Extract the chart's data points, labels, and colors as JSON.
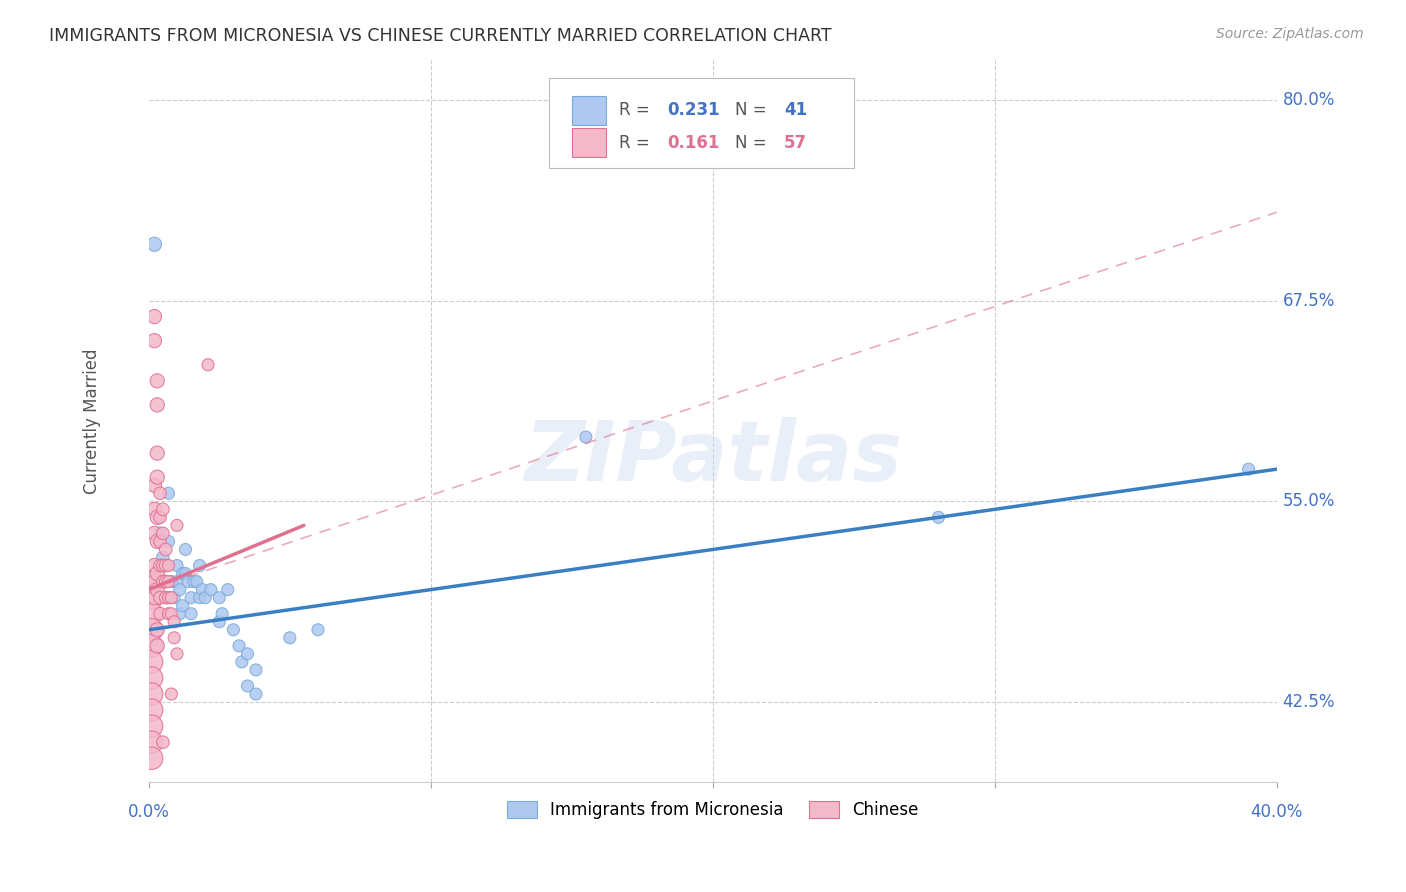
{
  "title": "IMMIGRANTS FROM MICRONESIA VS CHINESE CURRENTLY MARRIED CORRELATION CHART",
  "source": "Source: ZipAtlas.com",
  "ylabel": "Currently Married",
  "xlim": [
    0.0,
    0.4
  ],
  "ylim": [
    0.375,
    0.825
  ],
  "axis_color": "#4472c4",
  "blue_scatter_fill": "#aec8f0",
  "blue_scatter_edge": "#7aaad8",
  "pink_scatter_fill": "#f4b8cb",
  "pink_scatter_edge": "#e07090",
  "watermark": "ZIPatlas",
  "blue_trend": [
    0.0,
    0.47,
    0.4,
    0.57
  ],
  "pink_solid_trend": [
    0.0,
    0.495,
    0.055,
    0.535
  ],
  "pink_dash_trend": [
    0.0,
    0.495,
    0.4,
    0.73
  ],
  "yticks": [
    0.8,
    0.675,
    0.55,
    0.425
  ],
  "ytick_labels": [
    "80.0%",
    "67.5%",
    "55.0%",
    "42.5%"
  ],
  "blue_dots": [
    [
      0.002,
      0.71
    ],
    [
      0.004,
      0.53
    ],
    [
      0.005,
      0.515
    ],
    [
      0.007,
      0.555
    ],
    [
      0.007,
      0.525
    ],
    [
      0.008,
      0.5
    ],
    [
      0.009,
      0.49
    ],
    [
      0.01,
      0.51
    ],
    [
      0.01,
      0.5
    ],
    [
      0.011,
      0.495
    ],
    [
      0.011,
      0.48
    ],
    [
      0.012,
      0.505
    ],
    [
      0.012,
      0.485
    ],
    [
      0.013,
      0.52
    ],
    [
      0.013,
      0.505
    ],
    [
      0.014,
      0.5
    ],
    [
      0.015,
      0.49
    ],
    [
      0.015,
      0.48
    ],
    [
      0.016,
      0.5
    ],
    [
      0.017,
      0.5
    ],
    [
      0.018,
      0.51
    ],
    [
      0.018,
      0.49
    ],
    [
      0.019,
      0.495
    ],
    [
      0.02,
      0.49
    ],
    [
      0.022,
      0.495
    ],
    [
      0.025,
      0.49
    ],
    [
      0.025,
      0.475
    ],
    [
      0.026,
      0.48
    ],
    [
      0.028,
      0.495
    ],
    [
      0.03,
      0.47
    ],
    [
      0.032,
      0.46
    ],
    [
      0.033,
      0.45
    ],
    [
      0.035,
      0.435
    ],
    [
      0.035,
      0.455
    ],
    [
      0.038,
      0.43
    ],
    [
      0.038,
      0.445
    ],
    [
      0.05,
      0.465
    ],
    [
      0.06,
      0.47
    ],
    [
      0.155,
      0.59
    ],
    [
      0.28,
      0.54
    ],
    [
      0.39,
      0.57
    ]
  ],
  "pink_dots": [
    [
      0.001,
      0.5
    ],
    [
      0.001,
      0.49
    ],
    [
      0.001,
      0.48
    ],
    [
      0.001,
      0.47
    ],
    [
      0.001,
      0.46
    ],
    [
      0.001,
      0.45
    ],
    [
      0.001,
      0.44
    ],
    [
      0.001,
      0.43
    ],
    [
      0.001,
      0.42
    ],
    [
      0.001,
      0.41
    ],
    [
      0.001,
      0.4
    ],
    [
      0.001,
      0.39
    ],
    [
      0.002,
      0.665
    ],
    [
      0.002,
      0.65
    ],
    [
      0.002,
      0.56
    ],
    [
      0.002,
      0.545
    ],
    [
      0.002,
      0.53
    ],
    [
      0.002,
      0.51
    ],
    [
      0.002,
      0.5
    ],
    [
      0.002,
      0.49
    ],
    [
      0.003,
      0.625
    ],
    [
      0.003,
      0.61
    ],
    [
      0.003,
      0.58
    ],
    [
      0.003,
      0.565
    ],
    [
      0.003,
      0.54
    ],
    [
      0.003,
      0.525
    ],
    [
      0.003,
      0.505
    ],
    [
      0.003,
      0.495
    ],
    [
      0.003,
      0.47
    ],
    [
      0.003,
      0.46
    ],
    [
      0.004,
      0.555
    ],
    [
      0.004,
      0.54
    ],
    [
      0.004,
      0.525
    ],
    [
      0.004,
      0.51
    ],
    [
      0.004,
      0.49
    ],
    [
      0.004,
      0.48
    ],
    [
      0.005,
      0.545
    ],
    [
      0.005,
      0.53
    ],
    [
      0.005,
      0.51
    ],
    [
      0.005,
      0.5
    ],
    [
      0.005,
      0.4
    ],
    [
      0.006,
      0.52
    ],
    [
      0.006,
      0.51
    ],
    [
      0.006,
      0.5
    ],
    [
      0.006,
      0.49
    ],
    [
      0.007,
      0.51
    ],
    [
      0.007,
      0.5
    ],
    [
      0.007,
      0.49
    ],
    [
      0.007,
      0.48
    ],
    [
      0.008,
      0.49
    ],
    [
      0.008,
      0.48
    ],
    [
      0.008,
      0.43
    ],
    [
      0.009,
      0.475
    ],
    [
      0.009,
      0.465
    ],
    [
      0.01,
      0.455
    ],
    [
      0.01,
      0.535
    ],
    [
      0.021,
      0.635
    ]
  ],
  "legend_R_blue": "0.231",
  "legend_N_blue": "41",
  "legend_R_pink": "0.161",
  "legend_N_pink": "57",
  "legend_color_blue": "#4472c4",
  "legend_color_pink": "#e07090"
}
